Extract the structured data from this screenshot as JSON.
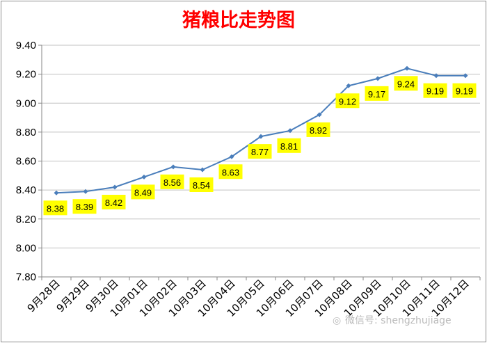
{
  "chart_data": {
    "type": "line",
    "title": "猪粮比走势图",
    "categories": [
      "9月28日",
      "9月29日",
      "9月30日",
      "10月01日",
      "10月02日",
      "10月03日",
      "10月04日",
      "10月05日",
      "10月06日",
      "10月07日",
      "10月08日",
      "10月09日",
      "10月10日",
      "10月11日",
      "10月12日"
    ],
    "series": [
      {
        "values": [
          8.38,
          8.39,
          8.42,
          8.49,
          8.56,
          8.54,
          8.63,
          8.77,
          8.81,
          8.92,
          9.12,
          9.17,
          9.24,
          9.19,
          9.19
        ]
      }
    ],
    "data_labels": [
      "8.38",
      "8.39",
      "8.42",
      "8.49",
      "8.56",
      "8.54",
      "8.63",
      "8.77",
      "8.81",
      "8.92",
      "9.12",
      "9.17",
      "9.24",
      "9.19",
      "9.19"
    ],
    "ylim": [
      7.8,
      9.4
    ],
    "yticks": [
      "7.80",
      "8.00",
      "8.20",
      "8.40",
      "8.60",
      "8.80",
      "9.00",
      "9.20",
      "9.40"
    ],
    "xlabel": "",
    "ylabel": "",
    "grid": true,
    "legend": "none",
    "colors": {
      "line": "#4a7ebb",
      "marker": "#4a7ebb",
      "label_bg": "#ffff00",
      "grid": "#c0c0c0",
      "title": "#ff0000"
    }
  },
  "watermark": "微信号: shengzhujiage"
}
